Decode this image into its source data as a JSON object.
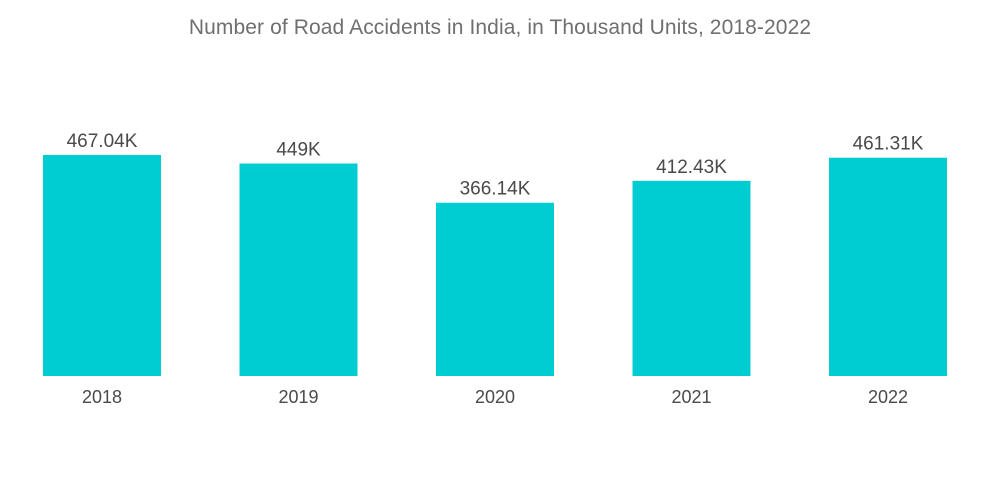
{
  "chart_data": {
    "type": "bar",
    "title": "Number of Road Accidents in India, in Thousand Units, 2018-2022",
    "xlabel": "",
    "ylabel": "",
    "categories": [
      "2018",
      "2019",
      "2020",
      "2021",
      "2022"
    ],
    "values": [
      467.04,
      449,
      366.14,
      412.43,
      461.31
    ],
    "value_labels": [
      "467.04K",
      "449K",
      "366.14K",
      "412.43K",
      "461.31K"
    ],
    "ylim": [
      0,
      467.04
    ],
    "grid": false,
    "legend": "none",
    "bar_color": "#00cdd1"
  }
}
